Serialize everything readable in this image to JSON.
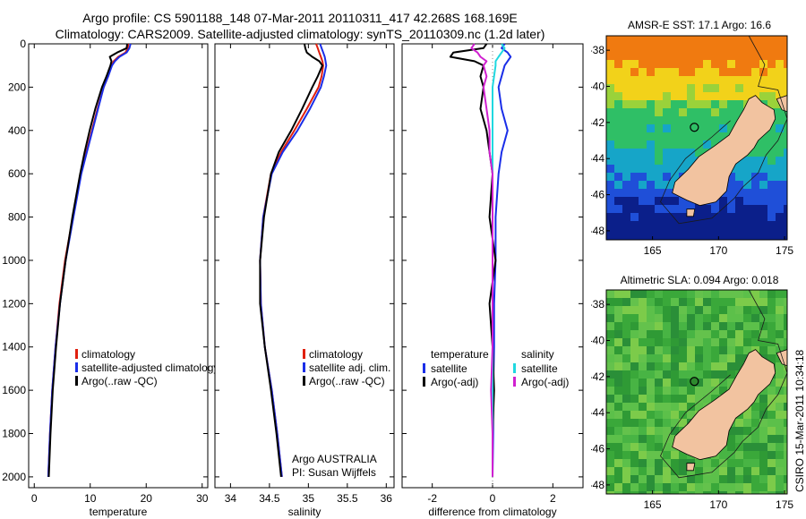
{
  "titles": {
    "line1": "Argo profile: CS 5901188_148 07-Mar-2011 20110311_417 42.268S 168.169E",
    "line2": "Climatology: CARS2009. Satellite-adjusted climatology: synTS_20110309.nc (1.2d later)"
  },
  "credits": {
    "argo": "Argo AUSTRALIA",
    "pi": "PI: Susan Wijffels",
    "stamp": "CSIRO 15-Mar-2011 10:34:18"
  },
  "map_panels": {
    "sst_title": "AMSR-E SST: 17.1 Argo: 16.6",
    "sla_title": "Altimetric SLA: 0.094 Argo: 0.018",
    "lon_ticks": [
      "165",
      "170",
      "175"
    ],
    "lat_ticks": [
      "-38",
      "-40",
      "-42",
      "-44",
      "-46",
      "-48"
    ],
    "float_lat": -42.268,
    "float_lon": 168.169
  },
  "colors": {
    "climatology": "#e0200f",
    "satellite": "#1a2ee8",
    "argo": "#000000",
    "salinity_satellite": "#20d8e0",
    "salinity_argo": "#d020d0",
    "land": "#f2c3a0",
    "coast": "#3a3a3a"
  },
  "chart_data": [
    {
      "type": "line",
      "xlabel": "temperature",
      "xlim": [
        -1,
        31
      ],
      "ylim": [
        2050,
        0
      ],
      "x_ticks": [
        0,
        10,
        20,
        30
      ],
      "y_ticks": [
        0,
        200,
        400,
        600,
        800,
        1000,
        1200,
        1400,
        1600,
        1800,
        2000
      ],
      "legend": [
        "climatology",
        "satellite-adjusted climatology",
        "Argo(..raw -QC)"
      ],
      "depth": [
        0,
        20,
        40,
        60,
        80,
        100,
        150,
        200,
        300,
        400,
        500,
        600,
        800,
        1000,
        1200,
        1400,
        1600,
        1800,
        2000
      ],
      "series": [
        {
          "name": "climatology",
          "values": [
            16.8,
            16.7,
            16.3,
            15.0,
            14.2,
            13.8,
            13.2,
            12.4,
            11.3,
            10.3,
            9.3,
            8.3,
            6.9,
            5.5,
            4.5,
            3.8,
            3.2,
            2.8,
            2.5
          ]
        },
        {
          "name": "satellite-adjusted climatology",
          "values": [
            17.2,
            17.0,
            16.5,
            15.2,
            14.4,
            13.9,
            13.2,
            12.4,
            11.4,
            10.4,
            9.4,
            8.4,
            7.0,
            5.6,
            4.6,
            3.8,
            3.2,
            2.8,
            2.5
          ]
        },
        {
          "name": "Argo(..raw -QC)",
          "values": [
            16.6,
            16.5,
            14.8,
            13.5,
            13.8,
            13.6,
            12.9,
            12.1,
            10.9,
            9.9,
            9.0,
            8.2,
            6.8,
            5.6,
            4.6,
            3.9,
            3.3,
            2.9,
            2.6
          ]
        }
      ]
    },
    {
      "type": "line",
      "xlabel": "salinity",
      "xlim": [
        33.8,
        36.1
      ],
      "ylim": [
        2050,
        0
      ],
      "x_ticks": [
        34,
        34.5,
        35,
        35.5,
        36
      ],
      "legend": [
        "climatology",
        "satellite adj. clim.",
        "Argo(..raw -QC)"
      ],
      "depth": [
        0,
        20,
        40,
        60,
        80,
        100,
        150,
        200,
        300,
        400,
        500,
        600,
        800,
        1000,
        1200,
        1400,
        1600,
        1800,
        2000
      ],
      "series": [
        {
          "name": "climatology",
          "values": [
            35.1,
            35.12,
            35.14,
            35.16,
            35.18,
            35.19,
            35.17,
            35.13,
            34.98,
            34.82,
            34.65,
            34.52,
            34.42,
            34.38,
            34.39,
            34.44,
            34.53,
            34.6,
            34.66
          ]
        },
        {
          "name": "satellite adj. clim.",
          "values": [
            35.15,
            35.17,
            35.19,
            35.21,
            35.22,
            35.23,
            35.2,
            35.16,
            35.02,
            34.86,
            34.67,
            34.53,
            34.42,
            34.38,
            34.39,
            34.44,
            34.53,
            34.6,
            34.66
          ]
        },
        {
          "name": "Argo(..raw -QC)",
          "values": [
            34.95,
            34.96,
            34.98,
            35.05,
            35.14,
            35.18,
            35.12,
            35.05,
            34.92,
            34.78,
            34.62,
            34.52,
            34.43,
            34.38,
            34.38,
            34.44,
            34.52,
            34.59,
            34.65
          ]
        }
      ]
    },
    {
      "type": "line",
      "xlabel": "difference from climatology",
      "xlim": [
        -3,
        3
      ],
      "ylim": [
        2050,
        0
      ],
      "x_ticks": [
        -2,
        0,
        2
      ],
      "legend_groups": [
        {
          "title": "temperature",
          "items": [
            "satellite",
            "Argo(-adj)"
          ]
        },
        {
          "title": "salinity",
          "items": [
            "satellite",
            "Argo(-adj)"
          ]
        }
      ],
      "depth": [
        0,
        20,
        40,
        60,
        80,
        100,
        150,
        200,
        300,
        400,
        500,
        600,
        800,
        1000,
        1200,
        1400,
        1600,
        1800,
        2000
      ],
      "series": [
        {
          "name": "temperature satellite",
          "values": [
            0.4,
            0.3,
            0.5,
            0.6,
            0.5,
            0.4,
            0.3,
            0.2,
            0.3,
            0.5,
            0.3,
            0.2,
            0.1,
            0.1,
            0.05,
            0.05,
            0.02,
            0.02,
            0.0
          ]
        },
        {
          "name": "temperature Argo(-adj)",
          "values": [
            -0.2,
            -0.3,
            -1.3,
            -1.4,
            -0.6,
            -0.3,
            -0.4,
            -0.3,
            -0.4,
            -0.2,
            -0.1,
            0.0,
            -0.1,
            0.1,
            -0.1,
            0.0,
            0.05,
            0.0,
            0.0
          ]
        },
        {
          "name": "salinity satellite",
          "values": [
            0.3,
            0.4,
            0.3,
            0.2,
            0.1,
            0.1,
            0.05,
            0.0,
            0.0,
            0.0,
            0.0,
            0.0,
            0.0,
            0.0,
            0.0,
            0.0,
            0.0,
            0.0,
            0.0
          ]
        },
        {
          "name": "salinity Argo(-adj)",
          "values": [
            -0.6,
            -0.7,
            -0.5,
            -0.4,
            -0.2,
            -0.3,
            -0.2,
            -0.3,
            -0.2,
            -0.1,
            -0.1,
            0.0,
            0.0,
            0.0,
            0.0,
            0.0,
            -0.05,
            0.0,
            0.0
          ]
        }
      ]
    }
  ]
}
